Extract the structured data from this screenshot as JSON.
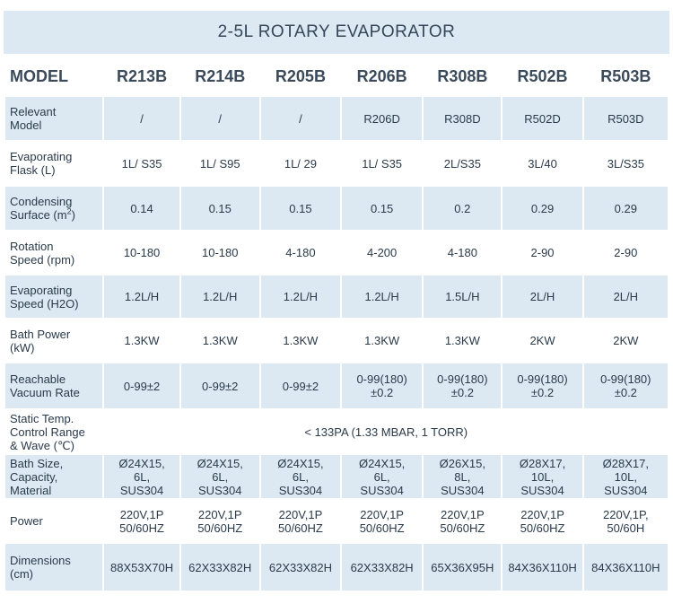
{
  "title": "2-5L ROTARY EVAPORATOR",
  "header": {
    "label": "MODEL",
    "models": [
      "R213B",
      "R214B",
      "R205B",
      "R206B",
      "R308B",
      "R502B",
      "R503B"
    ]
  },
  "rows": [
    {
      "label_lines": [
        "Relevant",
        "Model"
      ],
      "values": [
        "/",
        "/",
        "/",
        "R206D",
        "R308D",
        "R502D",
        "R503D"
      ]
    },
    {
      "label_lines": [
        "Evaporating",
        "Flask (L)"
      ],
      "values": [
        "1L/ S35",
        "1L/ S95",
        "1L/ 29",
        "1L/ S35",
        "2L/S35",
        "3L/40",
        "3L/S35"
      ]
    },
    {
      "label_lines": [
        "Condensing",
        "Surface (m²)"
      ],
      "values": [
        "0.14",
        "0.15",
        "0.15",
        "0.15",
        "0.2",
        "0.29",
        "0.29"
      ]
    },
    {
      "label_lines": [
        "Rotation",
        "Speed (rpm)"
      ],
      "values": [
        "10-180",
        "10-180",
        "4-180",
        "4-200",
        "4-180",
        "2-90",
        "2-90"
      ]
    },
    {
      "label_lines": [
        "Evaporating",
        "Speed (H2O)"
      ],
      "values": [
        "1.2L/H",
        "1.2L/H",
        "1.2L/H",
        "1.2L/H",
        "1.5L/H",
        "2L/H",
        "2L/H"
      ]
    },
    {
      "label_lines": [
        "Bath Power",
        "(kW)"
      ],
      "values": [
        "1.3KW",
        "1.3KW",
        "1.3KW",
        "1.3KW",
        "1.3KW",
        "2KW",
        "2KW"
      ]
    },
    {
      "label_lines": [
        "Reachable",
        "Vacuum Rate"
      ],
      "values": [
        [
          "0-99±2"
        ],
        [
          "0-99±2"
        ],
        [
          "0-99±2"
        ],
        [
          "0-99(180)",
          "±0.2"
        ],
        [
          "0-99(180)",
          "±0.2"
        ],
        [
          "0-99(180)",
          "±0.2"
        ],
        [
          "0-99(180)",
          "±0.2"
        ]
      ]
    },
    {
      "label_lines": [
        "Static Temp.",
        "Control Range",
        "& Wave (℃)"
      ],
      "span_value": "< 133PA (1.33 MBAR, 1 TORR)"
    },
    {
      "label_lines": [
        "Bath Size,",
        "Capacity,",
        "Material"
      ],
      "values": [
        [
          "Ø24X15,",
          "6L,",
          "SUS304"
        ],
        [
          "Ø24X15,",
          "6L,",
          "SUS304"
        ],
        [
          "Ø24X15,",
          "6L,",
          "SUS304"
        ],
        [
          "Ø24X15,",
          "6L,",
          "SUS304"
        ],
        [
          "Ø26X15,",
          "8L,",
          "SUS304"
        ],
        [
          "Ø28X17,",
          "10L,",
          "SUS304"
        ],
        [
          "Ø28X17,",
          "10L,",
          "SUS304"
        ]
      ]
    },
    {
      "label_lines": [
        "Power"
      ],
      "values": [
        [
          "220V,1P",
          "50/60HZ"
        ],
        [
          "220V,1P",
          "50/60HZ"
        ],
        [
          "220V,1P",
          "50/60HZ"
        ],
        [
          "220V,1P",
          "50/60HZ"
        ],
        [
          "220V,1P",
          "50/60HZ"
        ],
        [
          "220V,1P",
          "50/60HZ"
        ],
        [
          "220V,1P,",
          "50/60H"
        ]
      ]
    },
    {
      "label_lines": [
        "Dimensions",
        "(cm)"
      ],
      "values": [
        "88X53X70H",
        "62X33X82H",
        "62X33X82H",
        "62X33X82H",
        "65X36X95H",
        "84X36X110H",
        "84X36X110H"
      ]
    }
  ],
  "colors": {
    "band": "#dce9f3",
    "text": "#2a3a4a"
  }
}
